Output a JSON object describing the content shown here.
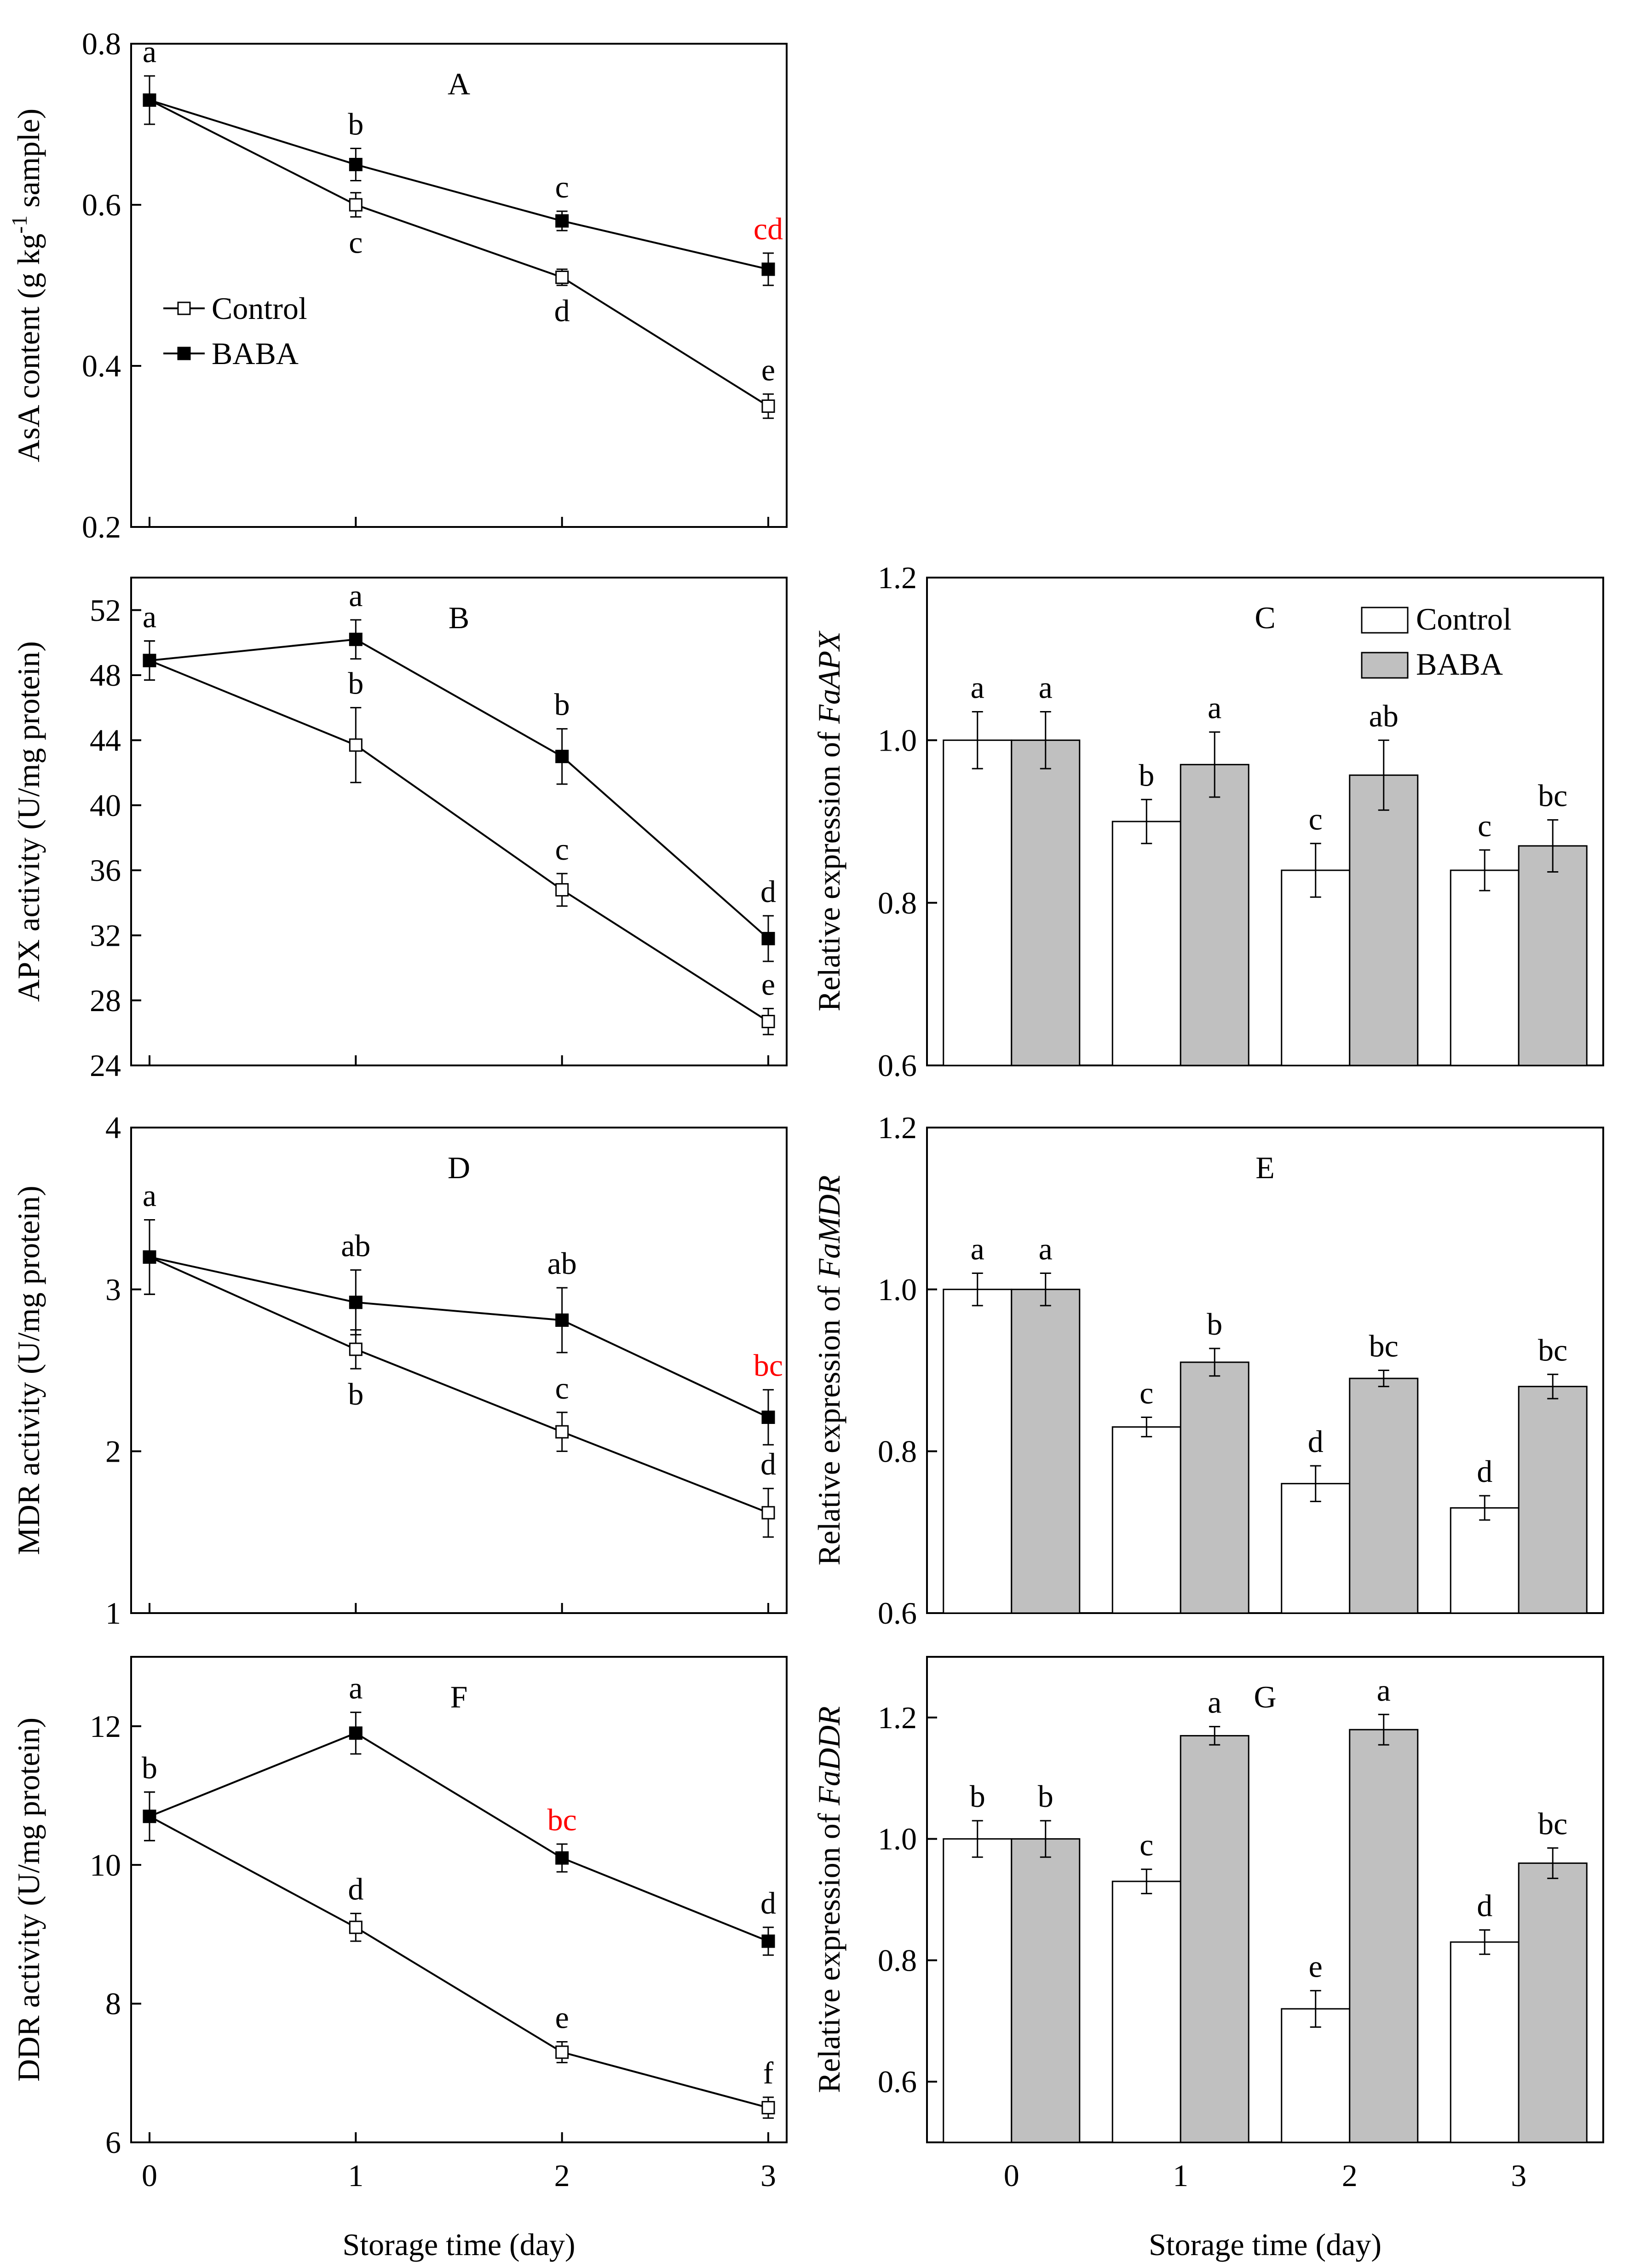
{
  "chart_data": [
    {
      "panel": "A",
      "type": "line",
      "title": "A",
      "xlabel": "",
      "ylabel": "AsA content (g kg",
      "ylabel_sup": "-1",
      "ylabel_tail": " sample)",
      "x": [
        0,
        1,
        2,
        3
      ],
      "xlim": [
        0,
        3
      ],
      "ylim": [
        0.2,
        0.8
      ],
      "yticks": [
        0.2,
        0.4,
        0.6,
        0.8
      ],
      "ytick_labels": [
        "0.2",
        "0.4",
        "0.6",
        "0.8"
      ],
      "show_xtick_labels": false,
      "legend": {
        "position": "middle-left",
        "entries": [
          "Control",
          "BABA"
        ]
      },
      "series": [
        {
          "name": "Control",
          "marker": "open-square",
          "values": [
            0.73,
            0.6,
            0.51,
            0.35
          ],
          "errors": [
            0.03,
            0.015,
            0.01,
            0.015
          ],
          "letters": [
            "",
            "c",
            "d",
            "e"
          ],
          "letter_pos": [
            "",
            "below",
            "below",
            "above"
          ]
        },
        {
          "name": "BABA",
          "marker": "filled-square",
          "values": [
            0.73,
            0.65,
            0.58,
            0.52
          ],
          "errors": [
            0.03,
            0.02,
            0.012,
            0.02
          ],
          "letters": [
            "a",
            "b",
            "c",
            "cd"
          ],
          "letter_pos": [
            "above",
            "above",
            "above",
            "above"
          ],
          "letter_colors": [
            "",
            "",
            "",
            "#ff0000"
          ]
        }
      ]
    },
    {
      "panel": "B",
      "type": "line",
      "title": "B",
      "xlabel": "",
      "ylabel": "APX activity (U/mg protein)",
      "x": [
        0,
        1,
        2,
        3
      ],
      "xlim": [
        0,
        3
      ],
      "ylim": [
        24,
        54
      ],
      "yticks": [
        24,
        28,
        32,
        36,
        40,
        44,
        48,
        52
      ],
      "ytick_labels": [
        "24",
        "28",
        "32",
        "36",
        "40",
        "44",
        "48",
        "52"
      ],
      "show_xtick_labels": false,
      "series": [
        {
          "name": "Control",
          "marker": "open-square",
          "values": [
            48.9,
            43.7,
            34.8,
            26.7
          ],
          "errors": [
            1.2,
            2.3,
            1.0,
            0.8
          ],
          "letters": [
            "",
            "b",
            "c",
            "e"
          ],
          "letter_pos": [
            "",
            "above",
            "above",
            "above"
          ]
        },
        {
          "name": "BABA",
          "marker": "filled-square",
          "values": [
            48.9,
            50.2,
            43.0,
            31.8
          ],
          "errors": [
            1.2,
            1.2,
            1.7,
            1.4
          ],
          "letters": [
            "a",
            "a",
            "b",
            "d"
          ],
          "letter_pos": [
            "above",
            "above",
            "above",
            "above"
          ]
        }
      ]
    },
    {
      "panel": "C",
      "type": "bar",
      "title": "C",
      "xlabel": "",
      "ylabel": "Relative expression of ",
      "ylabel_italic": "FaAPX",
      "categories": [
        "0",
        "1",
        "2",
        "3"
      ],
      "ylim": [
        0.6,
        1.2
      ],
      "yticks": [
        0.6,
        0.8,
        1.0,
        1.2
      ],
      "ytick_labels": [
        "0.6",
        "0.8",
        "1.0",
        "1.2"
      ],
      "show_xtick_labels": false,
      "legend": {
        "position": "top-right",
        "entries": [
          "Control",
          "BABA"
        ]
      },
      "series": [
        {
          "name": "Control",
          "fill": "#ffffff",
          "values": [
            1.0,
            0.9,
            0.84,
            0.84
          ],
          "errors": [
            0.035,
            0.027,
            0.033,
            0.025
          ],
          "letters": [
            "a",
            "b",
            "c",
            "c"
          ]
        },
        {
          "name": "BABA",
          "fill": "#c0c0c0",
          "values": [
            1.0,
            0.97,
            0.957,
            0.87
          ],
          "errors": [
            0.035,
            0.04,
            0.043,
            0.032
          ],
          "letters": [
            "a",
            "a",
            "ab",
            "bc"
          ]
        }
      ]
    },
    {
      "panel": "D",
      "type": "line",
      "title": "D",
      "xlabel": "",
      "ylabel": "MDR activity (U/mg protein)",
      "x": [
        0,
        1,
        2,
        3
      ],
      "xlim": [
        0,
        3
      ],
      "ylim": [
        1,
        4
      ],
      "yticks": [
        1,
        2,
        3,
        4
      ],
      "ytick_labels": [
        "1",
        "2",
        "3",
        "4"
      ],
      "show_xtick_labels": false,
      "series": [
        {
          "name": "Control",
          "marker": "open-square",
          "values": [
            3.2,
            2.63,
            2.12,
            1.62
          ],
          "errors": [
            0.23,
            0.12,
            0.12,
            0.15
          ],
          "letters": [
            "",
            "b",
            "c",
            "d"
          ],
          "letter_pos": [
            "",
            "below",
            "above",
            "above"
          ]
        },
        {
          "name": "BABA",
          "marker": "filled-square",
          "values": [
            3.2,
            2.92,
            2.81,
            2.21
          ],
          "errors": [
            0.23,
            0.2,
            0.2,
            0.17
          ],
          "letters": [
            "a",
            "ab",
            "ab",
            "bc"
          ],
          "letter_pos": [
            "above",
            "above",
            "above",
            "above"
          ],
          "letter_colors": [
            "",
            "",
            "",
            "#ff0000"
          ]
        }
      ]
    },
    {
      "panel": "E",
      "type": "bar",
      "title": "E",
      "xlabel": "",
      "ylabel": "Relative expression of ",
      "ylabel_italic": "FaMDR",
      "categories": [
        "0",
        "1",
        "2",
        "3"
      ],
      "ylim": [
        0.6,
        1.2
      ],
      "yticks": [
        0.6,
        0.8,
        1.0,
        1.2
      ],
      "ytick_labels": [
        "0.6",
        "0.8",
        "1.0",
        "1.2"
      ],
      "show_xtick_labels": false,
      "series": [
        {
          "name": "Control",
          "fill": "#ffffff",
          "values": [
            1.0,
            0.83,
            0.76,
            0.73
          ],
          "errors": [
            0.02,
            0.012,
            0.022,
            0.015
          ],
          "letters": [
            "a",
            "c",
            "d",
            "d"
          ]
        },
        {
          "name": "BABA",
          "fill": "#c0c0c0",
          "values": [
            1.0,
            0.91,
            0.89,
            0.88
          ],
          "errors": [
            0.02,
            0.017,
            0.01,
            0.015
          ],
          "letters": [
            "a",
            "b",
            "bc",
            "bc"
          ]
        }
      ]
    },
    {
      "panel": "F",
      "type": "line",
      "title": "F",
      "xlabel": "Storage time (day)",
      "ylabel": "DDR activity (U/mg protein)",
      "x": [
        0,
        1,
        2,
        3
      ],
      "xlim": [
        0,
        3
      ],
      "ylim": [
        6,
        13
      ],
      "yticks": [
        6,
        8,
        10,
        12
      ],
      "ytick_labels": [
        "6",
        "8",
        "10",
        "12"
      ],
      "xticks": [
        "0",
        "1",
        "2",
        "3"
      ],
      "show_xtick_labels": true,
      "series": [
        {
          "name": "Control",
          "marker": "open-square",
          "values": [
            10.7,
            9.1,
            7.3,
            6.5
          ],
          "errors": [
            0.35,
            0.2,
            0.15,
            0.15
          ],
          "letters": [
            "",
            "d",
            "e",
            "f"
          ],
          "letter_pos": [
            "",
            "above",
            "above",
            "above"
          ]
        },
        {
          "name": "BABA",
          "marker": "filled-square",
          "values": [
            10.7,
            11.9,
            10.1,
            8.9
          ],
          "errors": [
            0.35,
            0.3,
            0.2,
            0.2
          ],
          "letters": [
            "b",
            "a",
            "bc",
            "d"
          ],
          "letter_pos": [
            "above",
            "above",
            "above",
            "above"
          ],
          "letter_colors": [
            "",
            "",
            "#ff0000",
            ""
          ]
        }
      ]
    },
    {
      "panel": "G",
      "type": "bar",
      "title": "G",
      "xlabel": "Storage time (day)",
      "ylabel": "Relative expression of ",
      "ylabel_italic": "FaDDR",
      "categories": [
        "0",
        "1",
        "2",
        "3"
      ],
      "ylim": [
        0.5,
        1.3
      ],
      "yticks": [
        0.6,
        0.8,
        1.0,
        1.2
      ],
      "ytick_labels": [
        "0.6",
        "0.8",
        "1.0",
        "1.2"
      ],
      "show_xtick_labels": true,
      "series": [
        {
          "name": "Control",
          "fill": "#ffffff",
          "values": [
            1.0,
            0.93,
            0.72,
            0.83
          ],
          "errors": [
            0.03,
            0.02,
            0.03,
            0.02
          ],
          "letters": [
            "b",
            "c",
            "e",
            "d"
          ]
        },
        {
          "name": "BABA",
          "fill": "#c0c0c0",
          "values": [
            1.0,
            1.17,
            1.18,
            0.96
          ],
          "errors": [
            0.03,
            0.015,
            0.025,
            0.025
          ],
          "letters": [
            "b",
            "a",
            "a",
            "bc"
          ]
        }
      ]
    }
  ]
}
